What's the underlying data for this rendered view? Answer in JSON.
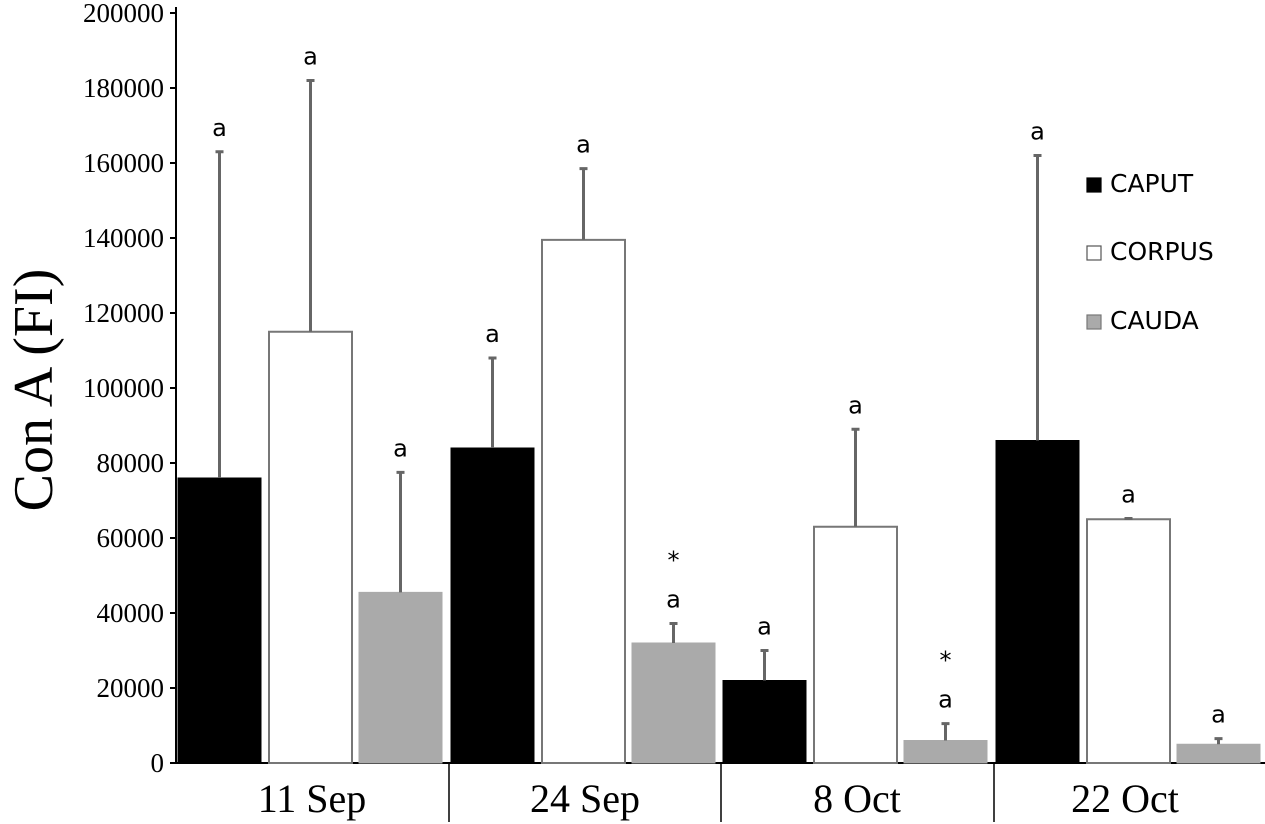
{
  "chart_data": {
    "type": "bar",
    "ylabel": "Con A (FI)",
    "xlabel": "",
    "ylim": [
      0,
      200000
    ],
    "yticks": [
      "0",
      "20000",
      "40000",
      "60000",
      "80000",
      "100000",
      "120000",
      "140000",
      "160000",
      "180000",
      "200000"
    ],
    "categories": [
      "11 Sep",
      "24 Sep",
      "8 Oct",
      "22 Oct"
    ],
    "legend_position": "right",
    "grid": false,
    "series": [
      {
        "name": "CAPUT",
        "color": "#000000",
        "stroke": "#000000",
        "values": [
          76000,
          84000,
          22000,
          86000
        ],
        "errors": [
          87000,
          24000,
          8000,
          76000
        ],
        "annotations": [
          "a",
          "a",
          "a",
          "a"
        ]
      },
      {
        "name": "CORPUS",
        "color": "#ffffff",
        "stroke": "#777777",
        "values": [
          115000,
          139500,
          63000,
          65000
        ],
        "errors": [
          67000,
          19000,
          26000,
          200
        ],
        "annotations": [
          "a",
          "a",
          "a",
          "a"
        ]
      },
      {
        "name": "CAUDA",
        "color": "#aaaaaa",
        "stroke": "#aaaaaa",
        "values": [
          45500,
          32000,
          6000,
          5000
        ],
        "errors": [
          32000,
          5200,
          4500,
          1500
        ],
        "annotations": [
          "a",
          "*\na",
          "*\na",
          "a"
        ]
      }
    ]
  }
}
